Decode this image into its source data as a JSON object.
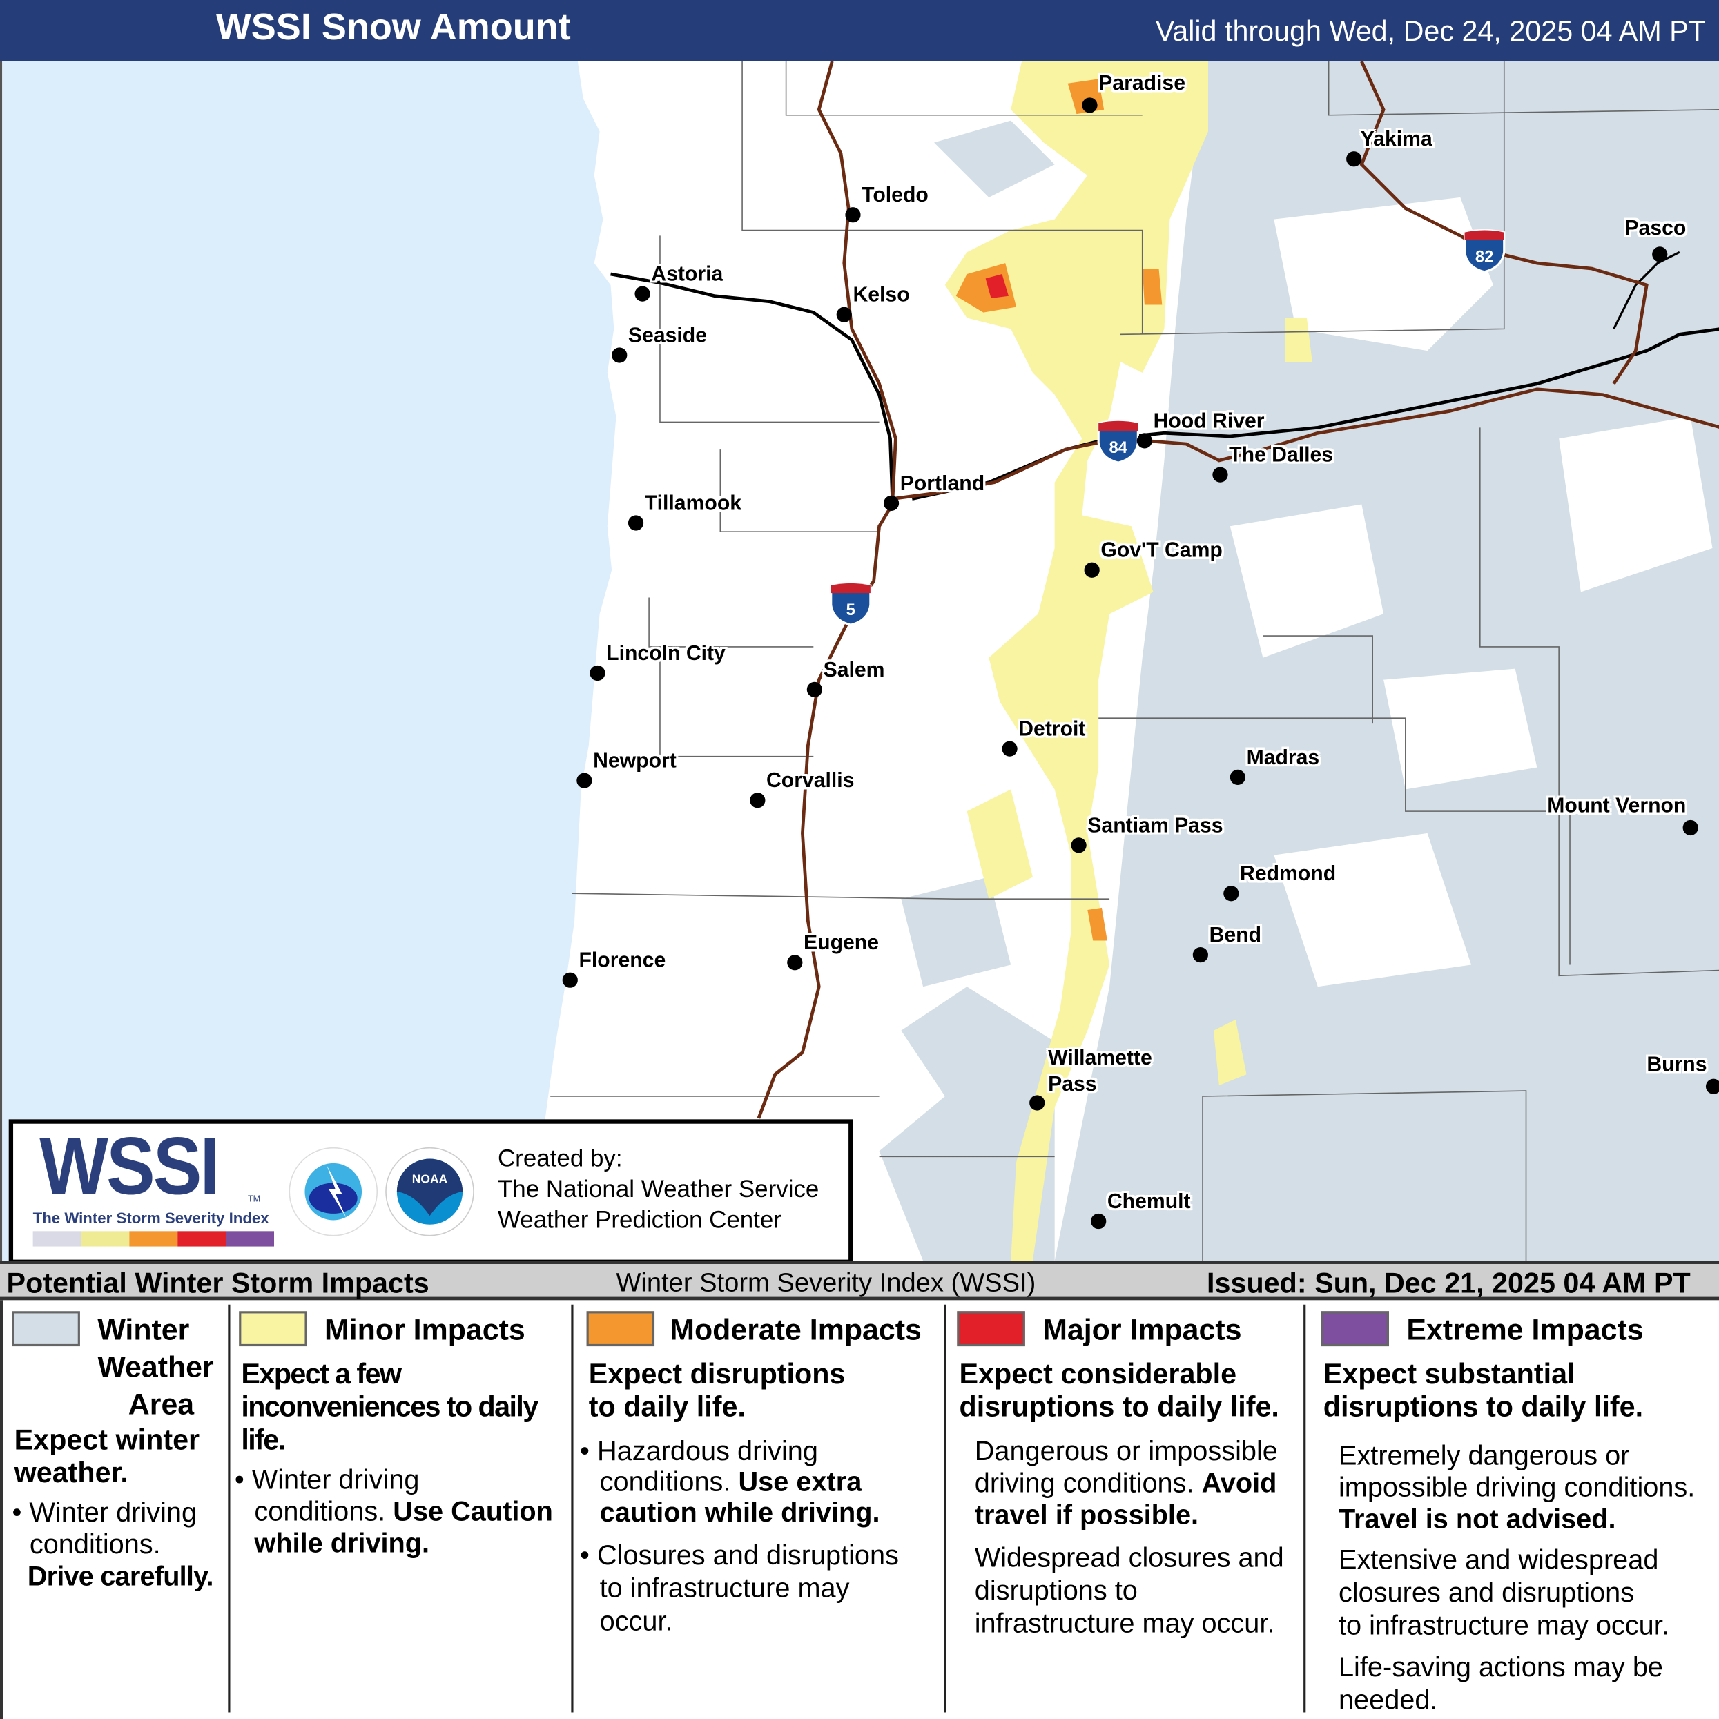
{
  "header": {
    "title": "WSSI Snow Amount",
    "valid": "Valid through Wed, Dec 24, 2025 04 AM PT"
  },
  "colors": {
    "header": "#253d78",
    "ocean": "#dcedfb",
    "winter_weather": "#d3dee6",
    "minor": "#f8f4a2",
    "moderate": "#f4972f",
    "major": "#e2202a",
    "extreme": "#7d4f9e",
    "interstate_road": "#6b2a12"
  },
  "cities": [
    "Paradise",
    "Yakima",
    "Toledo",
    "Pasco",
    "Astoria",
    "Kelso",
    "Seaside",
    "Hood River",
    "The Dalles",
    "Portland",
    "Tillamook",
    "Gov'T Camp",
    "Lincoln City",
    "Salem",
    "Detroit",
    "Madras",
    "Newport",
    "Corvallis",
    "Mount Vernon",
    "Santiam Pass",
    "Redmond",
    "Bend",
    "Florence",
    "Eugene",
    "Burns",
    "Willamette\nPass",
    "Chemult"
  ],
  "shields": [
    "84",
    "82",
    "5"
  ],
  "logo": {
    "wssi": "WSSI",
    "tm": "TM",
    "tagline": "The Winter Storm Severity Index",
    "nws_text": "NATIONAL WEATHER SERVICE",
    "noaa_text": "NOAA",
    "credit": [
      "Created by:",
      "The National Weather Service",
      "Weather Prediction Center"
    ]
  },
  "band": {
    "left": "Potential Winter Storm Impacts",
    "center": "Winter Storm Severity Index (WSSI)",
    "right": "Issued: Sun, Dec 21, 2025 04 AM PT"
  },
  "legend": [
    {
      "title": "Winter Weather Area",
      "t1": "Winter",
      "t2": "Weather",
      "t3": "Area",
      "headline": "Expect winter weather.",
      "h1": "Expect winter",
      "h2": "weather.",
      "b1": "Winter driving",
      "b2": "conditions.",
      "b3": "Drive carefully."
    },
    {
      "title": "Minor Impacts",
      "h1": "Expect a few",
      "h2": "inconveniences to daily",
      "h3": "life.",
      "b1": "Winter driving",
      "b2": "conditions.",
      "b2b": "Use Caution",
      "b3": "while driving."
    },
    {
      "title": "Moderate Impacts",
      "h1": "Expect disruptions",
      "h2": "to daily life.",
      "b1": "Hazardous driving",
      "b2": "conditions.",
      "b2b": "Use extra",
      "b3": "caution while driving.",
      "c1": "Closures and disruptions",
      "c2": "to infrastructure may",
      "c3": "occur."
    },
    {
      "title": "Major Impacts",
      "h1": "Expect considerable",
      "h2": "disruptions to daily life.",
      "b1": "Dangerous or impossible",
      "b2": "driving conditions.",
      "b2b": "Avoid",
      "b3": "travel if possible.",
      "c1": "Widespread closures and",
      "c2": "disruptions to",
      "c3": "infrastructure may occur."
    },
    {
      "title": "Extreme Impacts",
      "h1": "Expect substantial",
      "h2": "disruptions to daily life.",
      "b1": "Extremely dangerous or",
      "b2": "impossible driving conditions.",
      "b3": "Travel is not advised.",
      "c1": "Extensive and widespread",
      "c2": "closures and disruptions",
      "c3": "to infrastructure may occur.",
      "d1": "Life-saving actions may be",
      "d2": "needed."
    }
  ]
}
